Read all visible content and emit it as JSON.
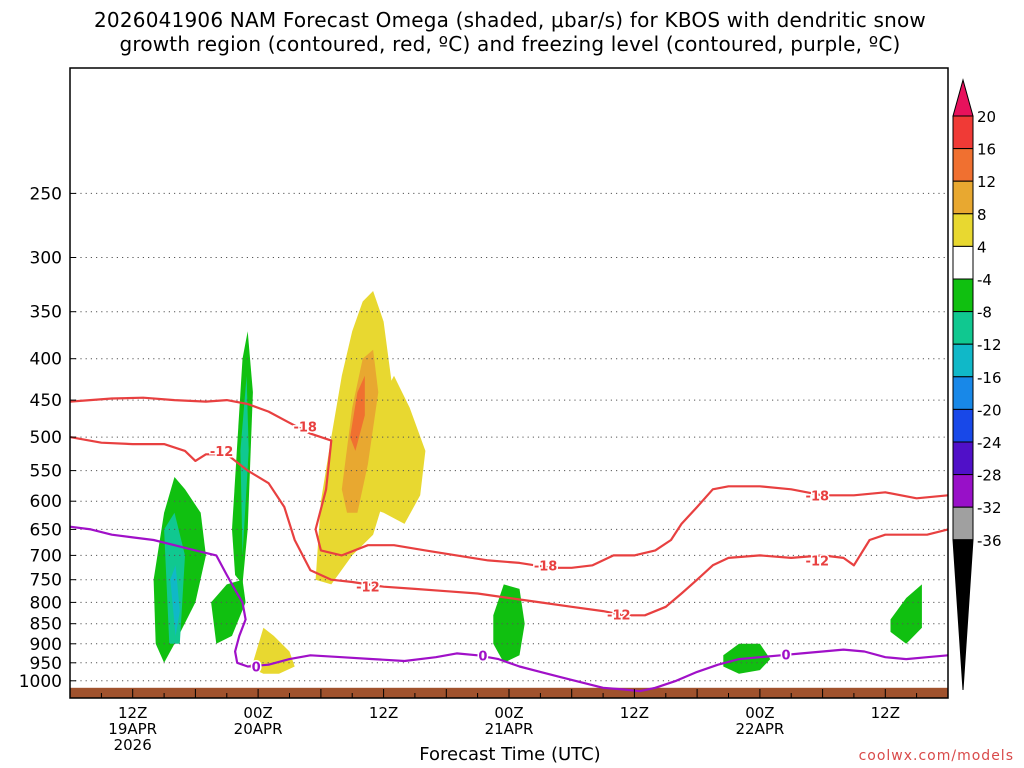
{
  "title": {
    "line1": "2026041906 NAM Forecast Omega (shaded, μbar/s) for KBOS with dendritic snow",
    "line2": "growth region (contoured, red, ºC) and freezing level (contoured, purple, ºC)"
  },
  "credit": "coolwx.com/models",
  "chart_data": {
    "type": "heatmap",
    "xlabel": "Forecast Time (UTC)",
    "x_range_hours": [
      0,
      84
    ],
    "x_ticks": [
      {
        "hour": 6,
        "lines": [
          "12Z",
          "19APR",
          "2026"
        ]
      },
      {
        "hour": 18,
        "lines": [
          "00Z",
          "20APR"
        ]
      },
      {
        "hour": 30,
        "lines": [
          "12Z"
        ]
      },
      {
        "hour": 42,
        "lines": [
          "00Z",
          "21APR"
        ]
      },
      {
        "hour": 54,
        "lines": [
          "12Z"
        ]
      },
      {
        "hour": 66,
        "lines": [
          "00Z",
          "22APR"
        ]
      },
      {
        "hour": 78,
        "lines": [
          "12Z"
        ]
      }
    ],
    "y_scale": "log-pressure",
    "y_range_hpa": [
      1050,
      175
    ],
    "y_ticks": [
      250,
      300,
      350,
      400,
      450,
      500,
      550,
      600,
      650,
      700,
      750,
      800,
      850,
      900,
      950,
      1000
    ],
    "grid": true,
    "colorbar": {
      "labels": [
        "20",
        "16",
        "12",
        "8",
        "4",
        "-4",
        "-8",
        "-12",
        "-16",
        "-20",
        "-24",
        "-28",
        "-32",
        "-36"
      ],
      "colors": [
        "#e8115c",
        "#f03a36",
        "#f07030",
        "#e8a830",
        "#e8d830",
        "#ffffff",
        "#10c010",
        "#10c890",
        "#10b8c8",
        "#1888e8",
        "#1848e8",
        "#5010c8",
        "#9810c8",
        "#a0a0a0",
        "#000000"
      ]
    },
    "omega_regions": [
      {
        "value": 4,
        "color": "#e8d830",
        "hours": [
          23.5,
          24,
          25,
          26,
          27,
          28,
          29,
          30,
          31,
          30.5,
          29,
          27,
          25,
          23.5
        ],
        "hpa": [
          750,
          600,
          500,
          420,
          370,
          340,
          330,
          360,
          450,
          570,
          660,
          700,
          760,
          750
        ]
      },
      {
        "value": 4,
        "color": "#e8d830",
        "hours": [
          27.5,
          29,
          31,
          32.5,
          34,
          33.5,
          32,
          30,
          28.5
        ],
        "hpa": [
          560,
          470,
          420,
          460,
          520,
          590,
          640,
          620,
          610
        ]
      },
      {
        "value": 4,
        "color": "#e8d830",
        "hours": [
          17.5,
          18.5,
          19.5,
          21,
          21.5,
          20,
          18.5,
          17
        ],
        "hpa": [
          950,
          860,
          880,
          920,
          960,
          980,
          980,
          960
        ]
      },
      {
        "value": 8,
        "color": "#e8a830",
        "hours": [
          26,
          27,
          28,
          29,
          29.5,
          28.5,
          27.5,
          26.5
        ],
        "hpa": [
          580,
          460,
          400,
          390,
          440,
          540,
          620,
          620
        ]
      },
      {
        "value": 12,
        "color": "#f07030",
        "hours": [
          26.8,
          27.5,
          28.2,
          28.2,
          27.3
        ],
        "hpa": [
          500,
          440,
          420,
          470,
          520
        ]
      },
      {
        "value": -8,
        "color": "#10c010",
        "hours": [
          8,
          9,
          10,
          11,
          12.5,
          13,
          12,
          10,
          9,
          8.2
        ],
        "hpa": [
          750,
          620,
          560,
          580,
          620,
          700,
          800,
          900,
          950,
          900
        ]
      },
      {
        "value": -8,
        "color": "#10c010",
        "hours": [
          15.5,
          16.5,
          17,
          17.5,
          17,
          16.5,
          15.8
        ],
        "hpa": [
          650,
          400,
          370,
          440,
          650,
          760,
          740
        ]
      },
      {
        "value": -8,
        "color": "#10c010",
        "hours": [
          13.5,
          15,
          16.5,
          16.8,
          15.5,
          14
        ],
        "hpa": [
          800,
          760,
          750,
          800,
          880,
          900
        ]
      },
      {
        "value": -8,
        "color": "#10c010",
        "hours": [
          40.5,
          41.5,
          43,
          43.5,
          43,
          41.5,
          40.5
        ],
        "hpa": [
          830,
          760,
          770,
          850,
          930,
          950,
          900
        ]
      },
      {
        "value": -8,
        "color": "#10c010",
        "hours": [
          62.5,
          64,
          66,
          67,
          66,
          64,
          62.5
        ],
        "hpa": [
          930,
          900,
          900,
          940,
          970,
          980,
          960
        ]
      },
      {
        "value": -8,
        "color": "#10c010",
        "hours": [
          78.5,
          80,
          81.5,
          81.5,
          80,
          78.5
        ],
        "hpa": [
          840,
          790,
          760,
          860,
          900,
          870
        ]
      },
      {
        "value": -12,
        "color": "#10c890",
        "hours": [
          9,
          10,
          11,
          10.5,
          9.5
        ],
        "hpa": [
          650,
          620,
          700,
          900,
          900
        ]
      },
      {
        "value": -12,
        "color": "#10c890",
        "hours": [
          16.3,
          16.9,
          17.1,
          16.5
        ],
        "hpa": [
          520,
          420,
          520,
          700
        ]
      },
      {
        "value": -16,
        "color": "#10b8c8",
        "hours": [
          9.6,
          10.1,
          10.5,
          10.1
        ],
        "hpa": [
          750,
          720,
          820,
          880
        ]
      }
    ],
    "contours": [
      {
        "label": "-18",
        "color": "#e84040",
        "hours": [
          0,
          4,
          7,
          10,
          13,
          15,
          17,
          19,
          21,
          23,
          25,
          24.5,
          23.5,
          24,
          26,
          28.5,
          31,
          34,
          37,
          40,
          43,
          46,
          48,
          50,
          52,
          54,
          56,
          57.5,
          58.5,
          60,
          61.5,
          63,
          66,
          69,
          72,
          75,
          78,
          81,
          84
        ],
        "hpa": [
          452,
          448,
          447,
          450,
          452,
          450,
          455,
          465,
          480,
          495,
          505,
          580,
          650,
          690,
          700,
          680,
          680,
          690,
          700,
          710,
          715,
          725,
          725,
          720,
          700,
          700,
          690,
          670,
          640,
          610,
          580,
          575,
          575,
          580,
          590,
          590,
          585,
          595,
          590
        ]
      },
      {
        "label": "-12",
        "color": "#e84040",
        "hours": [
          0,
          3,
          6,
          9,
          11,
          12,
          13,
          15,
          17,
          19,
          20.5,
          21.5,
          23,
          25,
          27,
          30,
          33,
          36,
          39,
          42,
          45,
          48,
          51,
          53,
          55,
          57,
          58.5,
          60,
          61.5,
          63,
          66,
          69,
          72,
          74,
          75,
          76.5,
          78,
          80,
          82,
          84
        ],
        "hpa": [
          500,
          508,
          510,
          510,
          520,
          535,
          525,
          525,
          550,
          570,
          610,
          670,
          730,
          750,
          755,
          765,
          770,
          775,
          780,
          790,
          800,
          810,
          820,
          830,
          830,
          810,
          780,
          750,
          720,
          705,
          700,
          705,
          700,
          705,
          720,
          670,
          660,
          660,
          660,
          650
        ]
      },
      {
        "label": "0",
        "color": "#a010c8",
        "hours": [
          0,
          2,
          4,
          6,
          8,
          10,
          12,
          14,
          15,
          16,
          16.5,
          16.8,
          16.2,
          15.8,
          16,
          17,
          19,
          21,
          23,
          26,
          29,
          32,
          35,
          37,
          39,
          41,
          43,
          45,
          47,
          49,
          51,
          53,
          54.5,
          56,
          58,
          60,
          62,
          64,
          66,
          68,
          70,
          72,
          74,
          76,
          78,
          80,
          82,
          84
        ],
        "hpa": [
          645,
          650,
          660,
          665,
          670,
          680,
          690,
          700,
          740,
          780,
          800,
          840,
          880,
          920,
          950,
          960,
          955,
          940,
          930,
          935,
          940,
          945,
          935,
          925,
          930,
          940,
          960,
          975,
          990,
          1005,
          1020,
          1025,
          1030,
          1020,
          1000,
          975,
          955,
          940,
          935,
          930,
          925,
          920,
          915,
          920,
          935,
          940,
          935,
          930
        ]
      }
    ],
    "contour_labels": [
      {
        "text": "-18",
        "hour": 22.5,
        "hpa": 485,
        "color": "#e84040"
      },
      {
        "text": "-12",
        "hour": 14.5,
        "hpa": 520,
        "color": "#e84040"
      },
      {
        "text": "-12",
        "hour": 28.5,
        "hpa": 765,
        "color": "#e84040"
      },
      {
        "text": "-18",
        "hour": 45.5,
        "hpa": 720,
        "color": "#e84040"
      },
      {
        "text": "-12",
        "hour": 52.5,
        "hpa": 828,
        "color": "#e84040"
      },
      {
        "text": "-18",
        "hour": 71.5,
        "hpa": 590,
        "color": "#e84040"
      },
      {
        "text": "-12",
        "hour": 71.5,
        "hpa": 710,
        "color": "#e84040"
      },
      {
        "text": "0",
        "hour": 17.8,
        "hpa": 960,
        "color": "#a010c8"
      },
      {
        "text": "0",
        "hour": 39.5,
        "hpa": 930,
        "color": "#a010c8"
      },
      {
        "text": "0",
        "hour": 68.5,
        "hpa": 928,
        "color": "#a010c8"
      }
    ],
    "terrain": {
      "color": "#a0522d",
      "hpa": 1020
    }
  }
}
